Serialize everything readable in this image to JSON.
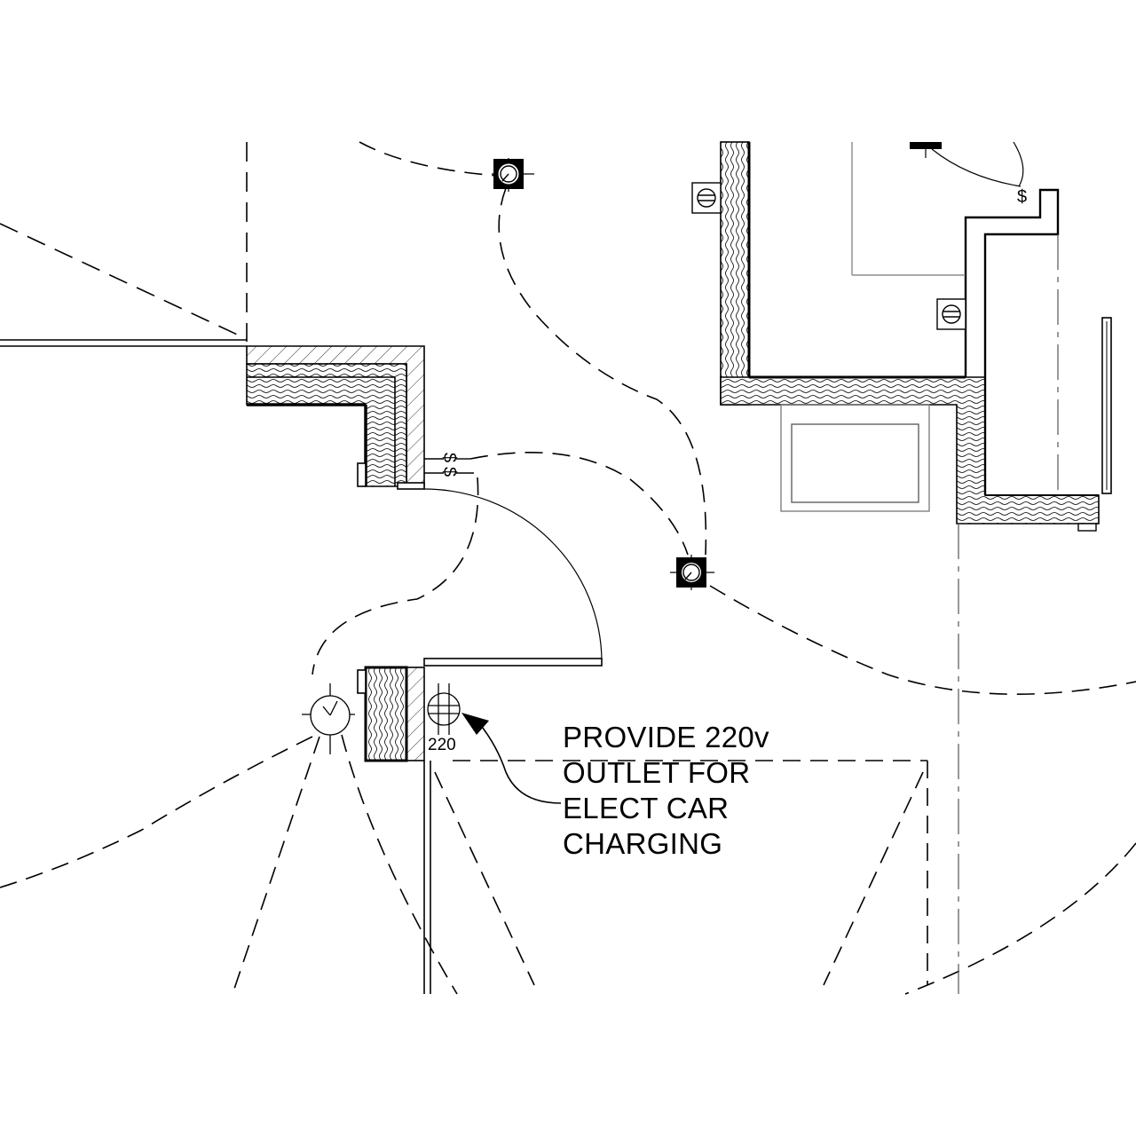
{
  "callout": {
    "lines": [
      "PROVIDE 220v",
      "OUTLET FOR",
      "ELECT CAR",
      "CHARGING"
    ]
  },
  "outlet_220": {
    "label": "220"
  },
  "switches": {
    "symbol": "$"
  },
  "symbols": {
    "ceiling_light_icon": "square-ceiling-light-icon",
    "wall_light_icon": "circle-wall-light-icon",
    "outlet_icon": "duplex-outlet-icon",
    "special_outlet_icon": "special-outlet-icon",
    "arrow_icon": "leader-arrow-icon"
  },
  "colors": {
    "line": "#000000",
    "background": "#ffffff",
    "light_line": "#777777"
  }
}
